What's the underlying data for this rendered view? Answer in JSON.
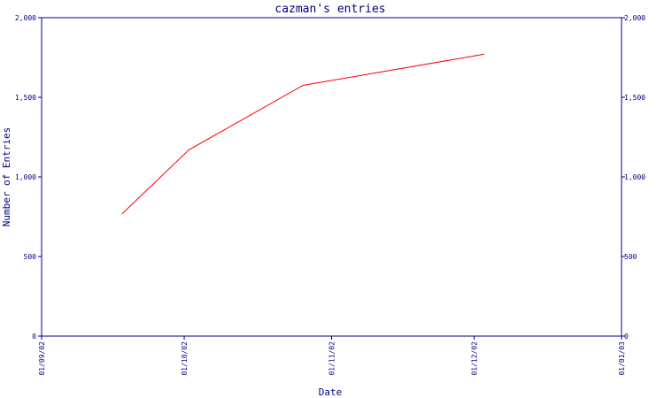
{
  "chart_data": {
    "type": "line",
    "title": "cazman's entries",
    "xlabel": "Date",
    "ylabel": "Number of Entries",
    "ylim": [
      0,
      2000
    ],
    "yticks": [
      {
        "value": 0,
        "label": "0"
      },
      {
        "value": 500,
        "label": "500"
      },
      {
        "value": 1000,
        "label": "1,000"
      },
      {
        "value": 1500,
        "label": "1,500"
      },
      {
        "value": 2000,
        "label": "2,000"
      }
    ],
    "xlim": [
      "2002-09-01",
      "2003-01-01"
    ],
    "xticks": [
      {
        "value": "2002-09-01",
        "label": "01/09/02"
      },
      {
        "value": "2002-10-01",
        "label": "01/10/02"
      },
      {
        "value": "2002-11-01",
        "label": "01/11/02"
      },
      {
        "value": "2002-12-01",
        "label": "01/12/02"
      },
      {
        "value": "2003-01-01",
        "label": "01/01/03"
      }
    ],
    "series": [
      {
        "color": "#ff0000",
        "points": [
          {
            "x": "2002-09-18",
            "y": 770
          },
          {
            "x": "2002-10-02",
            "y": 1170
          },
          {
            "x": "2002-10-26",
            "y": 1575
          },
          {
            "x": "2002-12-03",
            "y": 1770
          }
        ]
      }
    ],
    "grid": false,
    "right_axis": true,
    "colors": {
      "axis": "#000080",
      "text": "#000080",
      "line": "#ff0000"
    }
  }
}
